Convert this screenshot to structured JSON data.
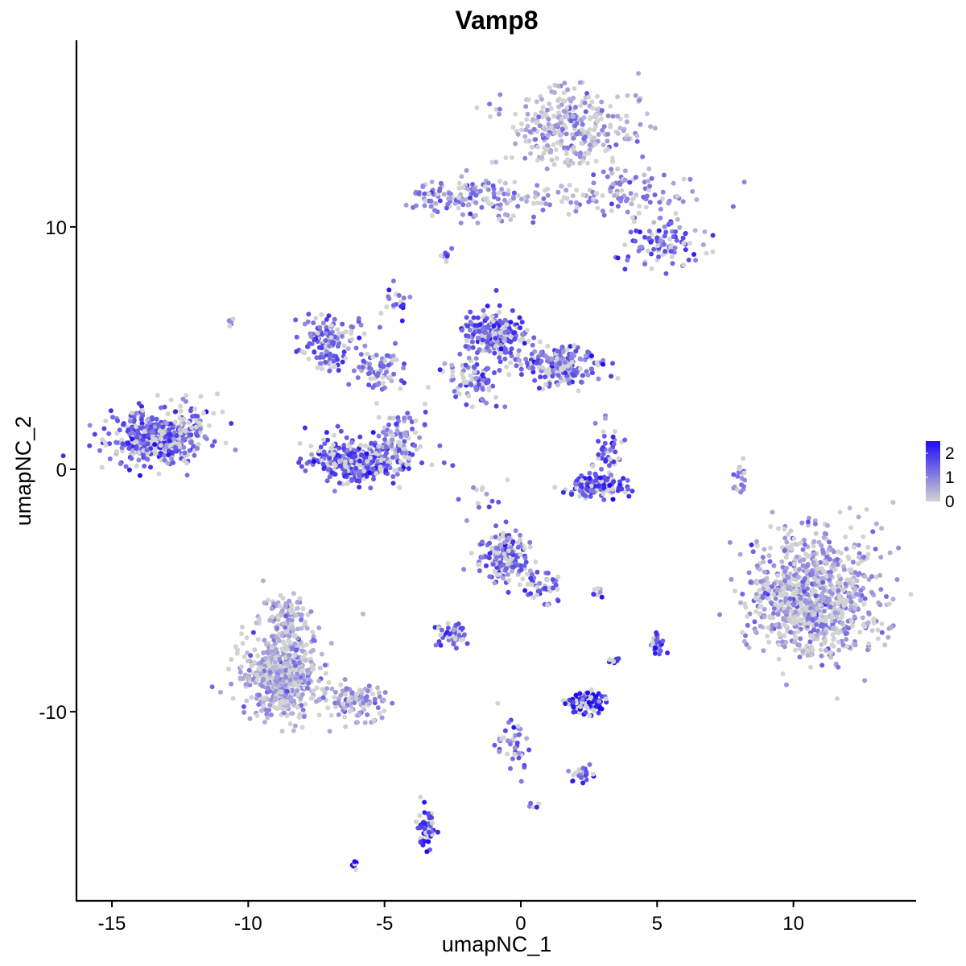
{
  "chart_data": {
    "type": "scatter",
    "title": "Vamp8",
    "xlabel": "umapNC_1",
    "ylabel": "umapNC_2",
    "xlim": [
      -16.3,
      14.5
    ],
    "ylim": [
      -17.8,
      17.7
    ],
    "x_ticks": [
      -15,
      -10,
      -5,
      0,
      5,
      10
    ],
    "x_tick_labels": [
      "-15",
      "-10",
      "-5",
      "0",
      "5",
      "10"
    ],
    "y_ticks": [
      -10,
      0,
      10
    ],
    "y_tick_labels": [
      "-10",
      "0",
      "10"
    ],
    "grid": false,
    "legend_position": "right",
    "color_scale": {
      "low_color": "#d3d3d3",
      "high_color": "#1f0bf2",
      "range": [
        0,
        2.5
      ],
      "ticks": [
        0,
        1,
        2
      ],
      "tick_labels": [
        "0",
        "1",
        "2"
      ]
    },
    "clusters": [
      {
        "x": 1.8,
        "y": 14.2,
        "sx": 1.2,
        "sy": 0.8,
        "n": 320,
        "expr": 0.5
      },
      {
        "x": 3.8,
        "y": 11.3,
        "sx": 1.4,
        "sy": 0.6,
        "n": 110,
        "expr": 1.0
      },
      {
        "x": 5.3,
        "y": 9.3,
        "sx": 0.7,
        "sy": 0.5,
        "n": 90,
        "expr": 1.3
      },
      {
        "x": -2.2,
        "y": 11.3,
        "sx": 0.9,
        "sy": 0.35,
        "n": 110,
        "expr": 1.1
      },
      {
        "x": 0.3,
        "y": 11.1,
        "sx": 1.2,
        "sy": 0.4,
        "n": 55,
        "expr": 0.9
      },
      {
        "x": -13.3,
        "y": 1.3,
        "sx": 0.85,
        "sy": 0.55,
        "n": 440,
        "expr": 1.5
      },
      {
        "x": -12.0,
        "y": 2.0,
        "sx": 0.4,
        "sy": 0.45,
        "n": 35,
        "expr": 1.4
      },
      {
        "x": -7.0,
        "y": 5.3,
        "sx": 0.55,
        "sy": 0.55,
        "n": 140,
        "expr": 1.4
      },
      {
        "x": -5.2,
        "y": 4.0,
        "sx": 0.5,
        "sy": 0.5,
        "n": 70,
        "expr": 1.2
      },
      {
        "x": -5.9,
        "y": 0.4,
        "sx": 0.9,
        "sy": 0.45,
        "n": 330,
        "expr": 1.6
      },
      {
        "x": -4.4,
        "y": 1.4,
        "sx": 0.5,
        "sy": 0.7,
        "n": 75,
        "expr": 1.2
      },
      {
        "x": -1.0,
        "y": 5.6,
        "sx": 0.55,
        "sy": 0.45,
        "n": 230,
        "expr": 1.5
      },
      {
        "x": 1.3,
        "y": 4.3,
        "sx": 0.8,
        "sy": 0.45,
        "n": 200,
        "expr": 1.4
      },
      {
        "x": -1.7,
        "y": 3.6,
        "sx": 0.55,
        "sy": 0.5,
        "n": 90,
        "expr": 1.3
      },
      {
        "x": 2.8,
        "y": -0.7,
        "sx": 0.6,
        "sy": 0.25,
        "n": 130,
        "expr": 1.8
      },
      {
        "x": 3.2,
        "y": 0.7,
        "sx": 0.25,
        "sy": 0.5,
        "n": 45,
        "expr": 1.5
      },
      {
        "x": 10.8,
        "y": -5.3,
        "sx": 1.2,
        "sy": 1.3,
        "n": 900,
        "expr": 0.7
      },
      {
        "x": -0.6,
        "y": -3.6,
        "sx": 0.45,
        "sy": 0.55,
        "n": 170,
        "expr": 1.4
      },
      {
        "x": 0.9,
        "y": -4.8,
        "sx": 0.4,
        "sy": 0.35,
        "n": 45,
        "expr": 1.3
      },
      {
        "x": -8.8,
        "y": -8.6,
        "sx": 0.75,
        "sy": 0.85,
        "n": 520,
        "expr": 0.55
      },
      {
        "x": -8.6,
        "y": -6.3,
        "sx": 0.45,
        "sy": 0.6,
        "n": 110,
        "expr": 0.6
      },
      {
        "x": -6.1,
        "y": -9.6,
        "sx": 0.6,
        "sy": 0.4,
        "n": 110,
        "expr": 0.8
      },
      {
        "x": -2.5,
        "y": -6.8,
        "sx": 0.25,
        "sy": 0.25,
        "n": 55,
        "expr": 1.5
      },
      {
        "x": 2.4,
        "y": -9.6,
        "sx": 0.3,
        "sy": 0.2,
        "n": 130,
        "expr": 2.3
      },
      {
        "x": -0.2,
        "y": -11.2,
        "sx": 0.3,
        "sy": 0.6,
        "n": 40,
        "expr": 1.2
      },
      {
        "x": 2.3,
        "y": -12.6,
        "sx": 0.2,
        "sy": 0.2,
        "n": 25,
        "expr": 1.5
      },
      {
        "x": -3.5,
        "y": -14.8,
        "sx": 0.2,
        "sy": 0.4,
        "n": 55,
        "expr": 1.9
      },
      {
        "x": 5.0,
        "y": -7.3,
        "sx": 0.15,
        "sy": 0.25,
        "n": 25,
        "expr": 1.7
      },
      {
        "x": 8.0,
        "y": -0.3,
        "sx": 0.15,
        "sy": 0.4,
        "n": 18,
        "expr": 0.8
      },
      {
        "x": -2.7,
        "y": 8.7,
        "sx": 0.1,
        "sy": 0.15,
        "n": 10,
        "expr": 1.3
      },
      {
        "x": -4.6,
        "y": 7.0,
        "sx": 0.2,
        "sy": 0.4,
        "n": 18,
        "expr": 1.5
      },
      {
        "x": 3.4,
        "y": -7.8,
        "sx": 0.1,
        "sy": 0.1,
        "n": 8,
        "expr": 1.9
      },
      {
        "x": 2.8,
        "y": -5.1,
        "sx": 0.1,
        "sy": 0.1,
        "n": 8,
        "expr": 1.6
      },
      {
        "x": -6.1,
        "y": -16.3,
        "sx": 0.08,
        "sy": 0.08,
        "n": 8,
        "expr": 2.4
      },
      {
        "x": -10.6,
        "y": 6.1,
        "sx": 0.08,
        "sy": 0.08,
        "n": 5,
        "expr": 1.2
      },
      {
        "x": -1.5,
        "y": -1.1,
        "sx": 0.5,
        "sy": 0.5,
        "n": 12,
        "expr": 1.2
      },
      {
        "x": 0.6,
        "y": -13.8,
        "sx": 0.1,
        "sy": 0.1,
        "n": 5,
        "expr": 1.1
      }
    ]
  }
}
